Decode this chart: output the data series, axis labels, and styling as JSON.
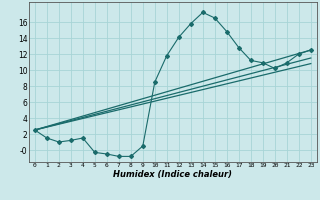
{
  "xlabel": "Humidex (Indice chaleur)",
  "background_color": "#cce8ea",
  "grid_color": "#a8d4d6",
  "line_color": "#1a6b6b",
  "xlim": [
    -0.5,
    23.5
  ],
  "ylim": [
    -1.5,
    18.5
  ],
  "xticks": [
    0,
    1,
    2,
    3,
    4,
    5,
    6,
    7,
    8,
    9,
    10,
    11,
    12,
    13,
    14,
    15,
    16,
    17,
    18,
    19,
    20,
    21,
    22,
    23
  ],
  "yticks": [
    0,
    2,
    4,
    6,
    8,
    10,
    12,
    14,
    16
  ],
  "ytick_labels": [
    "-0",
    "2",
    "4",
    "6",
    "8",
    "10",
    "12",
    "14",
    "16"
  ],
  "main_series_x": [
    0,
    1,
    2,
    3,
    4,
    5,
    6,
    7,
    8,
    9,
    10,
    11,
    12,
    13,
    14,
    15,
    16,
    17,
    18,
    19,
    20,
    21,
    22,
    23
  ],
  "main_series_y": [
    2.5,
    1.5,
    1.0,
    1.2,
    1.5,
    -0.3,
    -0.5,
    -0.8,
    -0.8,
    0.5,
    8.5,
    11.8,
    14.1,
    15.8,
    17.2,
    16.5,
    14.8,
    12.8,
    11.2,
    10.9,
    10.2,
    10.9,
    12.0,
    12.5
  ],
  "straight_lines": [
    {
      "x": [
        0,
        23
      ],
      "y": [
        2.5,
        12.5
      ]
    },
    {
      "x": [
        0,
        23
      ],
      "y": [
        2.5,
        11.5
      ]
    },
    {
      "x": [
        0,
        23
      ],
      "y": [
        2.5,
        10.8
      ]
    }
  ]
}
